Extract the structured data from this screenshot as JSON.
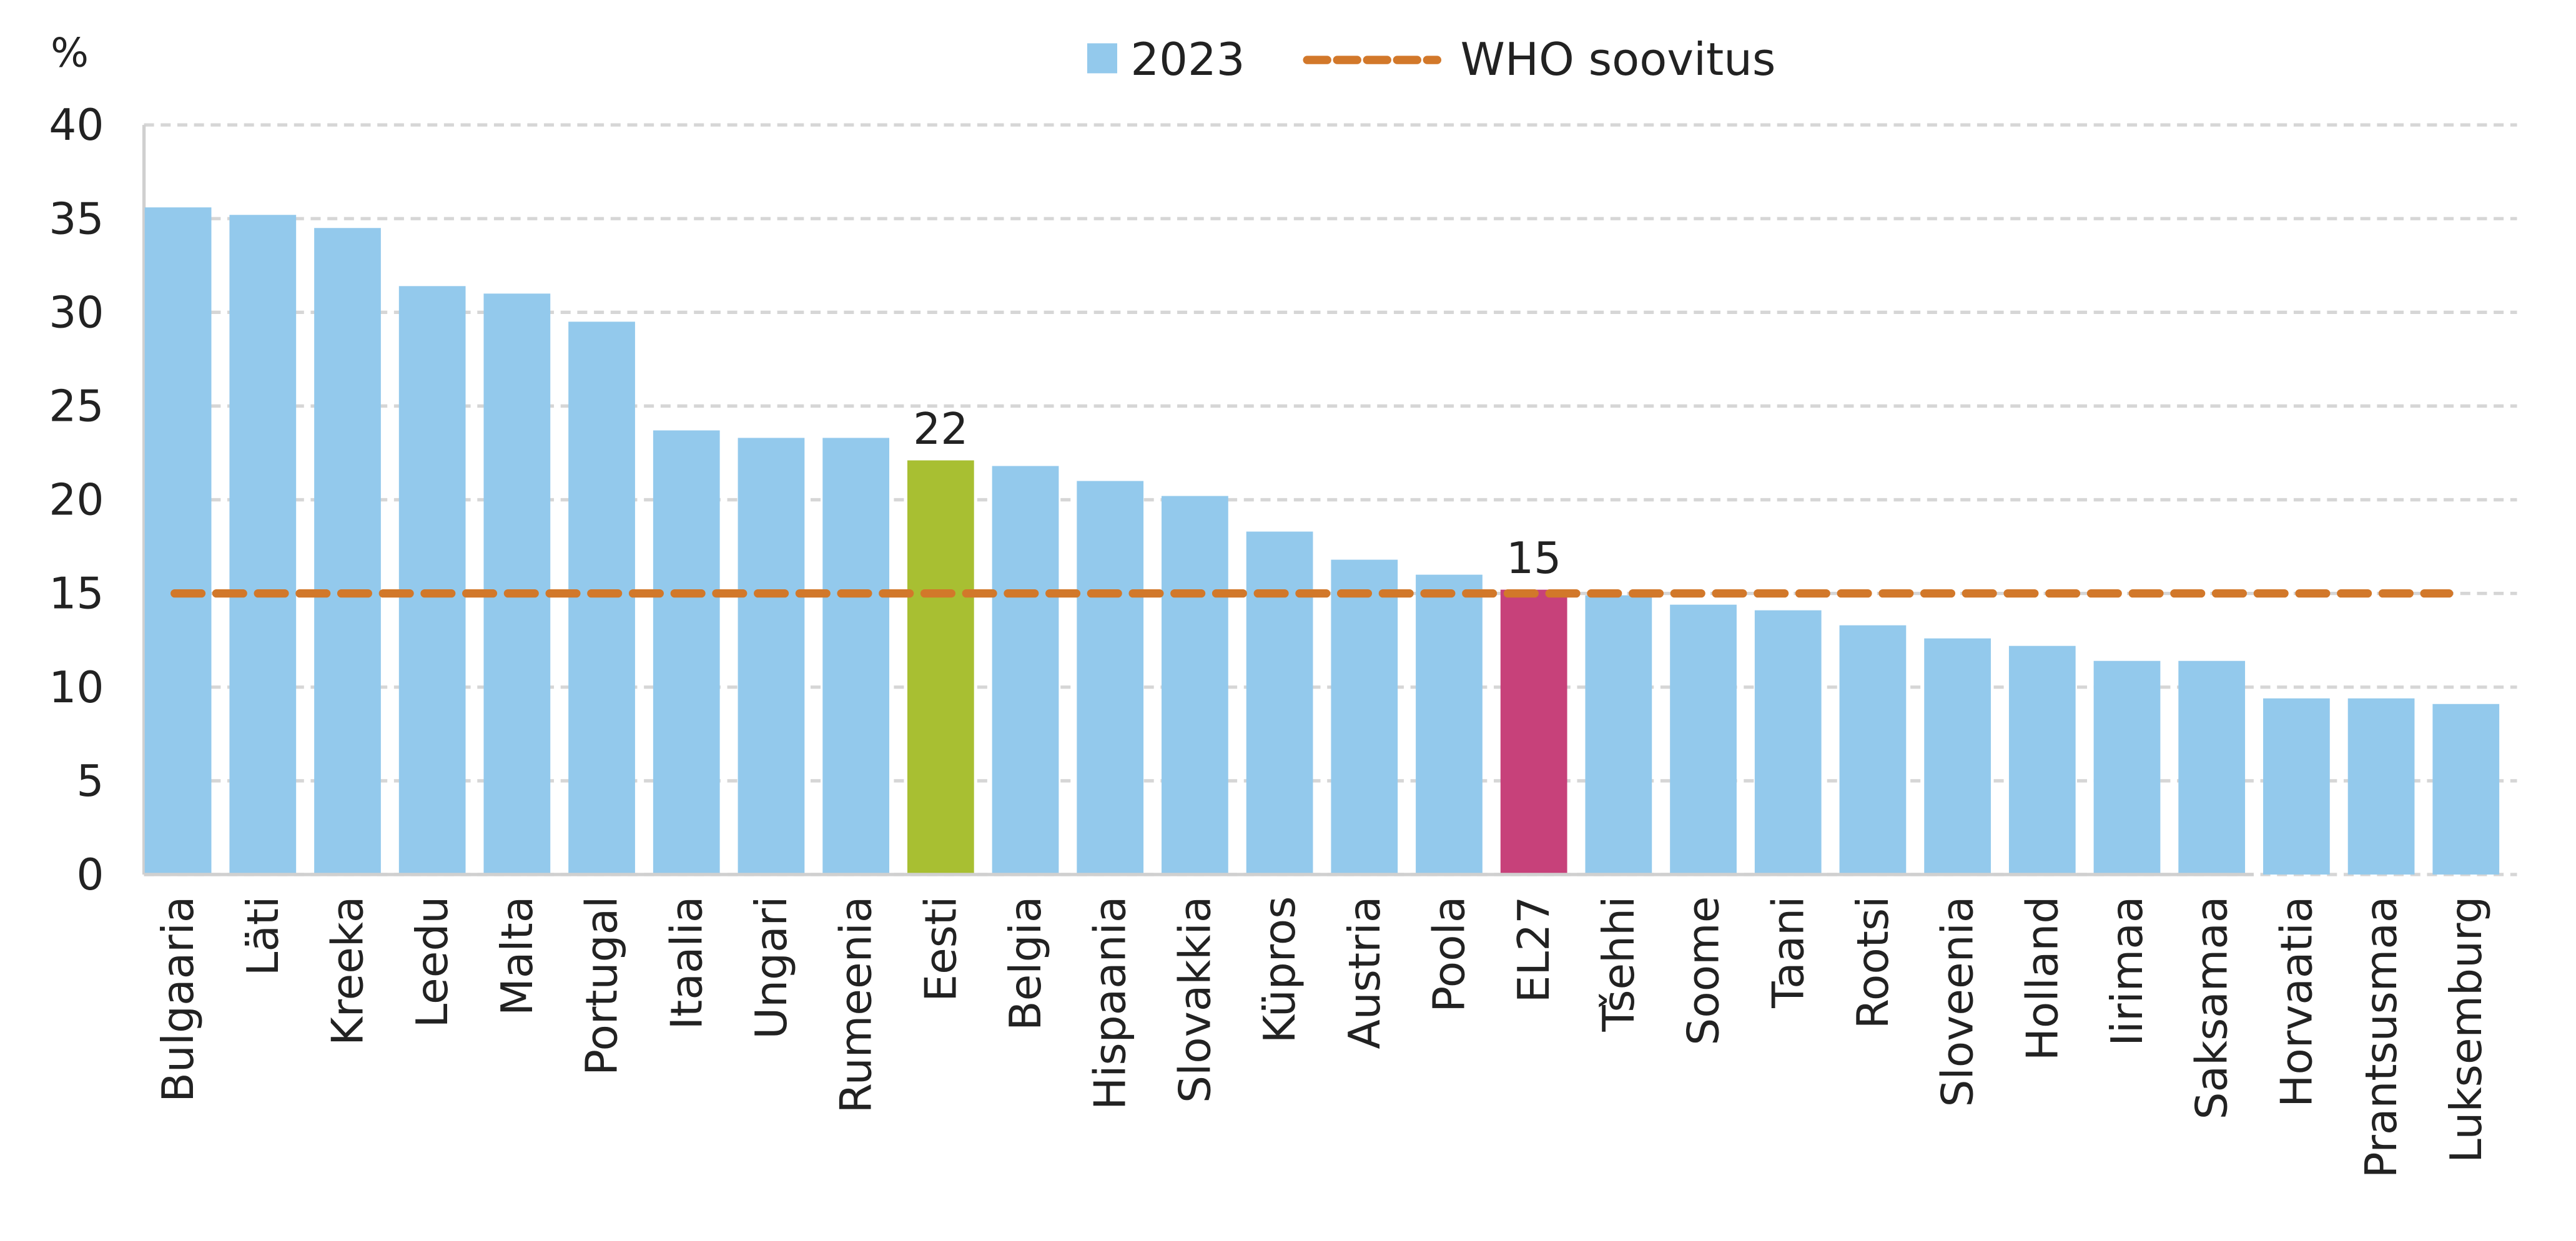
{
  "chart_data": {
    "type": "bar",
    "y_label": "%",
    "categories": [
      "Bulgaaria",
      "Läti",
      "Kreeka",
      "Leedu",
      "Malta",
      "Portugal",
      "Itaalia",
      "Ungari",
      "Rumeenia",
      "Eesti",
      "Belgia",
      "Hispaania",
      "Slovakkia",
      "Küpros",
      "Austria",
      "Poola",
      "EL27",
      "Tšehhi",
      "Soome",
      "Taani",
      "Rootsi",
      "Sloveenia",
      "Holland",
      "Iirimaa",
      "Saksamaa",
      "Horvaatia",
      "Prantsusmaa",
      "Luksemburg"
    ],
    "series": [
      {
        "name": "2023",
        "color": "#93c9ec",
        "values": [
          35.6,
          35.2,
          34.5,
          31.4,
          31.0,
          29.5,
          23.7,
          23.3,
          23.3,
          22.1,
          21.8,
          21.0,
          20.2,
          18.3,
          16.8,
          16.0,
          15.2,
          14.9,
          14.4,
          14.1,
          13.3,
          12.6,
          12.2,
          11.4,
          11.4,
          9.4,
          9.4,
          9.1
        ],
        "colors": [
          "#93c9ec",
          "#93c9ec",
          "#93c9ec",
          "#93c9ec",
          "#93c9ec",
          "#93c9ec",
          "#93c9ec",
          "#93c9ec",
          "#93c9ec",
          "#a8bf32",
          "#93c9ec",
          "#93c9ec",
          "#93c9ec",
          "#93c9ec",
          "#93c9ec",
          "#93c9ec",
          "#c7417a",
          "#93c9ec",
          "#93c9ec",
          "#93c9ec",
          "#93c9ec",
          "#93c9ec",
          "#93c9ec",
          "#93c9ec",
          "#93c9ec",
          "#93c9ec",
          "#93c9ec",
          "#93c9ec"
        ],
        "value_labels": [
          null,
          null,
          null,
          null,
          null,
          null,
          null,
          null,
          null,
          "22",
          null,
          null,
          null,
          null,
          null,
          null,
          "15",
          null,
          null,
          null,
          null,
          null,
          null,
          null,
          null,
          null,
          null,
          null
        ]
      }
    ],
    "reference_line": {
      "name": "WHO soovitus",
      "value": 15,
      "color": "#d2782a"
    },
    "ylim": [
      0,
      40
    ],
    "yticks": [
      0,
      5,
      10,
      15,
      20,
      25,
      30,
      35,
      40
    ],
    "grid": true,
    "legend": "top"
  }
}
